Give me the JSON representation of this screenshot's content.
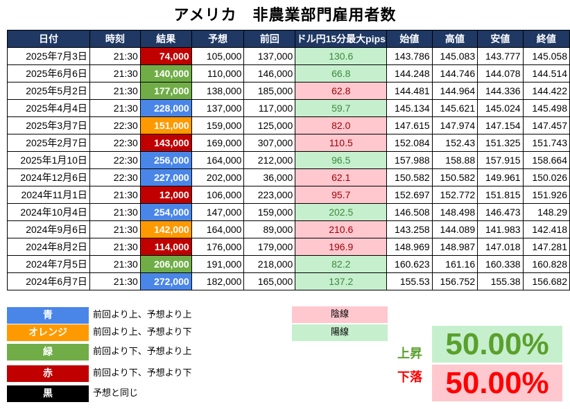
{
  "title": "アメリカ　非農業部門雇用者数",
  "headers": [
    "日付",
    "時刻",
    "結果",
    "予想",
    "前回",
    "ドル円15分最大pips",
    "始値",
    "高値",
    "安値",
    "終値"
  ],
  "rows": [
    {
      "date": "2025年7月3日",
      "time": "21:30",
      "result": "74,000",
      "result_color": "red",
      "forecast": "105,000",
      "previous": "137,000",
      "pips": "130.6",
      "pips_dir": "up",
      "open": "143.786",
      "high": "145.083",
      "low": "143.777",
      "close": "145.058"
    },
    {
      "date": "2025年6月6日",
      "time": "21:30",
      "result": "140,000",
      "result_color": "green",
      "forecast": "110,000",
      "previous": "146,000",
      "pips": "66.8",
      "pips_dir": "up",
      "open": "144.248",
      "high": "144.746",
      "low": "144.078",
      "close": "144.514"
    },
    {
      "date": "2025年5月2日",
      "time": "21:30",
      "result": "177,000",
      "result_color": "green",
      "forecast": "138,000",
      "previous": "185,000",
      "pips": "62.8",
      "pips_dir": "down",
      "open": "144.481",
      "high": "144.964",
      "low": "144.336",
      "close": "144.422"
    },
    {
      "date": "2025年4月4日",
      "time": "21:30",
      "result": "228,000",
      "result_color": "blue",
      "forecast": "137,000",
      "previous": "117,000",
      "pips": "59.7",
      "pips_dir": "up",
      "open": "145.134",
      "high": "145.621",
      "low": "145.024",
      "close": "145.498"
    },
    {
      "date": "2025年3月7日",
      "time": "22:30",
      "result": "151,000",
      "result_color": "orange",
      "forecast": "159,000",
      "previous": "125,000",
      "pips": "82.0",
      "pips_dir": "down",
      "open": "147.615",
      "high": "147.974",
      "low": "147.154",
      "close": "147.457"
    },
    {
      "date": "2025年2月7日",
      "time": "22:30",
      "result": "143,000",
      "result_color": "red",
      "forecast": "169,000",
      "previous": "307,000",
      "pips": "110.5",
      "pips_dir": "down",
      "open": "152.084",
      "high": "152.43",
      "low": "151.325",
      "close": "151.743"
    },
    {
      "date": "2025年1月10日",
      "time": "22:30",
      "result": "256,000",
      "result_color": "blue",
      "forecast": "164,000",
      "previous": "212,000",
      "pips": "96.5",
      "pips_dir": "up",
      "open": "157.988",
      "high": "158.88",
      "low": "157.915",
      "close": "158.664"
    },
    {
      "date": "2024年12月6日",
      "time": "22:30",
      "result": "227,000",
      "result_color": "blue",
      "forecast": "202,000",
      "previous": "36,000",
      "pips": "62.1",
      "pips_dir": "down",
      "open": "150.582",
      "high": "150.582",
      "low": "149.961",
      "close": "150.026"
    },
    {
      "date": "2024年11月1日",
      "time": "21:30",
      "result": "12,000",
      "result_color": "red",
      "forecast": "106,000",
      "previous": "223,000",
      "pips": "95.7",
      "pips_dir": "down",
      "open": "152.697",
      "high": "152.772",
      "low": "151.815",
      "close": "151.926"
    },
    {
      "date": "2024年10月4日",
      "time": "21:30",
      "result": "254,000",
      "result_color": "blue",
      "forecast": "147,000",
      "previous": "159,000",
      "pips": "202.5",
      "pips_dir": "up",
      "open": "146.508",
      "high": "148.498",
      "low": "146.473",
      "close": "148.29"
    },
    {
      "date": "2024年9月6日",
      "time": "21:30",
      "result": "142,000",
      "result_color": "orange",
      "forecast": "164,000",
      "previous": "89,000",
      "pips": "210.6",
      "pips_dir": "down",
      "open": "143.258",
      "high": "144.089",
      "low": "141.983",
      "close": "142.418"
    },
    {
      "date": "2024年8月2日",
      "time": "21:30",
      "result": "114,000",
      "result_color": "red",
      "forecast": "176,000",
      "previous": "179,000",
      "pips": "196.9",
      "pips_dir": "down",
      "open": "148.969",
      "high": "148.987",
      "low": "147.018",
      "close": "147.281"
    },
    {
      "date": "2024年7月5日",
      "time": "21:30",
      "result": "206,000",
      "result_color": "green",
      "forecast": "191,000",
      "previous": "218,000",
      "pips": "82.2",
      "pips_dir": "up",
      "open": "160.623",
      "high": "161.16",
      "low": "160.338",
      "close": "160.828"
    },
    {
      "date": "2024年6月7日",
      "time": "21:30",
      "result": "272,000",
      "result_color": "blue",
      "forecast": "182,000",
      "previous": "165,000",
      "pips": "137.2",
      "pips_dir": "up",
      "open": "155.53",
      "high": "156.752",
      "low": "155.38",
      "close": "156.682"
    }
  ],
  "legend": [
    {
      "key": "blue",
      "label": "青",
      "desc": "前回より上、予想より上",
      "color": "#4a86e8"
    },
    {
      "key": "orange",
      "label": "オレンジ",
      "desc": "前回より上、予想より下",
      "color": "#ff9900"
    },
    {
      "key": "green",
      "label": "緑",
      "desc": "前回より下、予想より上",
      "color": "#70ad47"
    },
    {
      "key": "red",
      "label": "赤",
      "desc": "前回より下、予想より下",
      "color": "#c00000"
    },
    {
      "key": "black",
      "label": "黒",
      "desc": "予想と同じ",
      "color": "#000000"
    }
  ],
  "candle_legend": {
    "bearish": {
      "label": "陰線",
      "color": "#ffc7ce"
    },
    "bullish": {
      "label": "陽線",
      "color": "#c6efce"
    }
  },
  "stats": {
    "rise_label": "上昇",
    "rise_value": "50.00%",
    "rise_color": "#5aa02c",
    "rise_bg": "#c6efce",
    "fall_label": "下落",
    "fall_value": "50.00%",
    "fall_color": "#ff0000",
    "fall_bg": "#ffc7ce"
  }
}
